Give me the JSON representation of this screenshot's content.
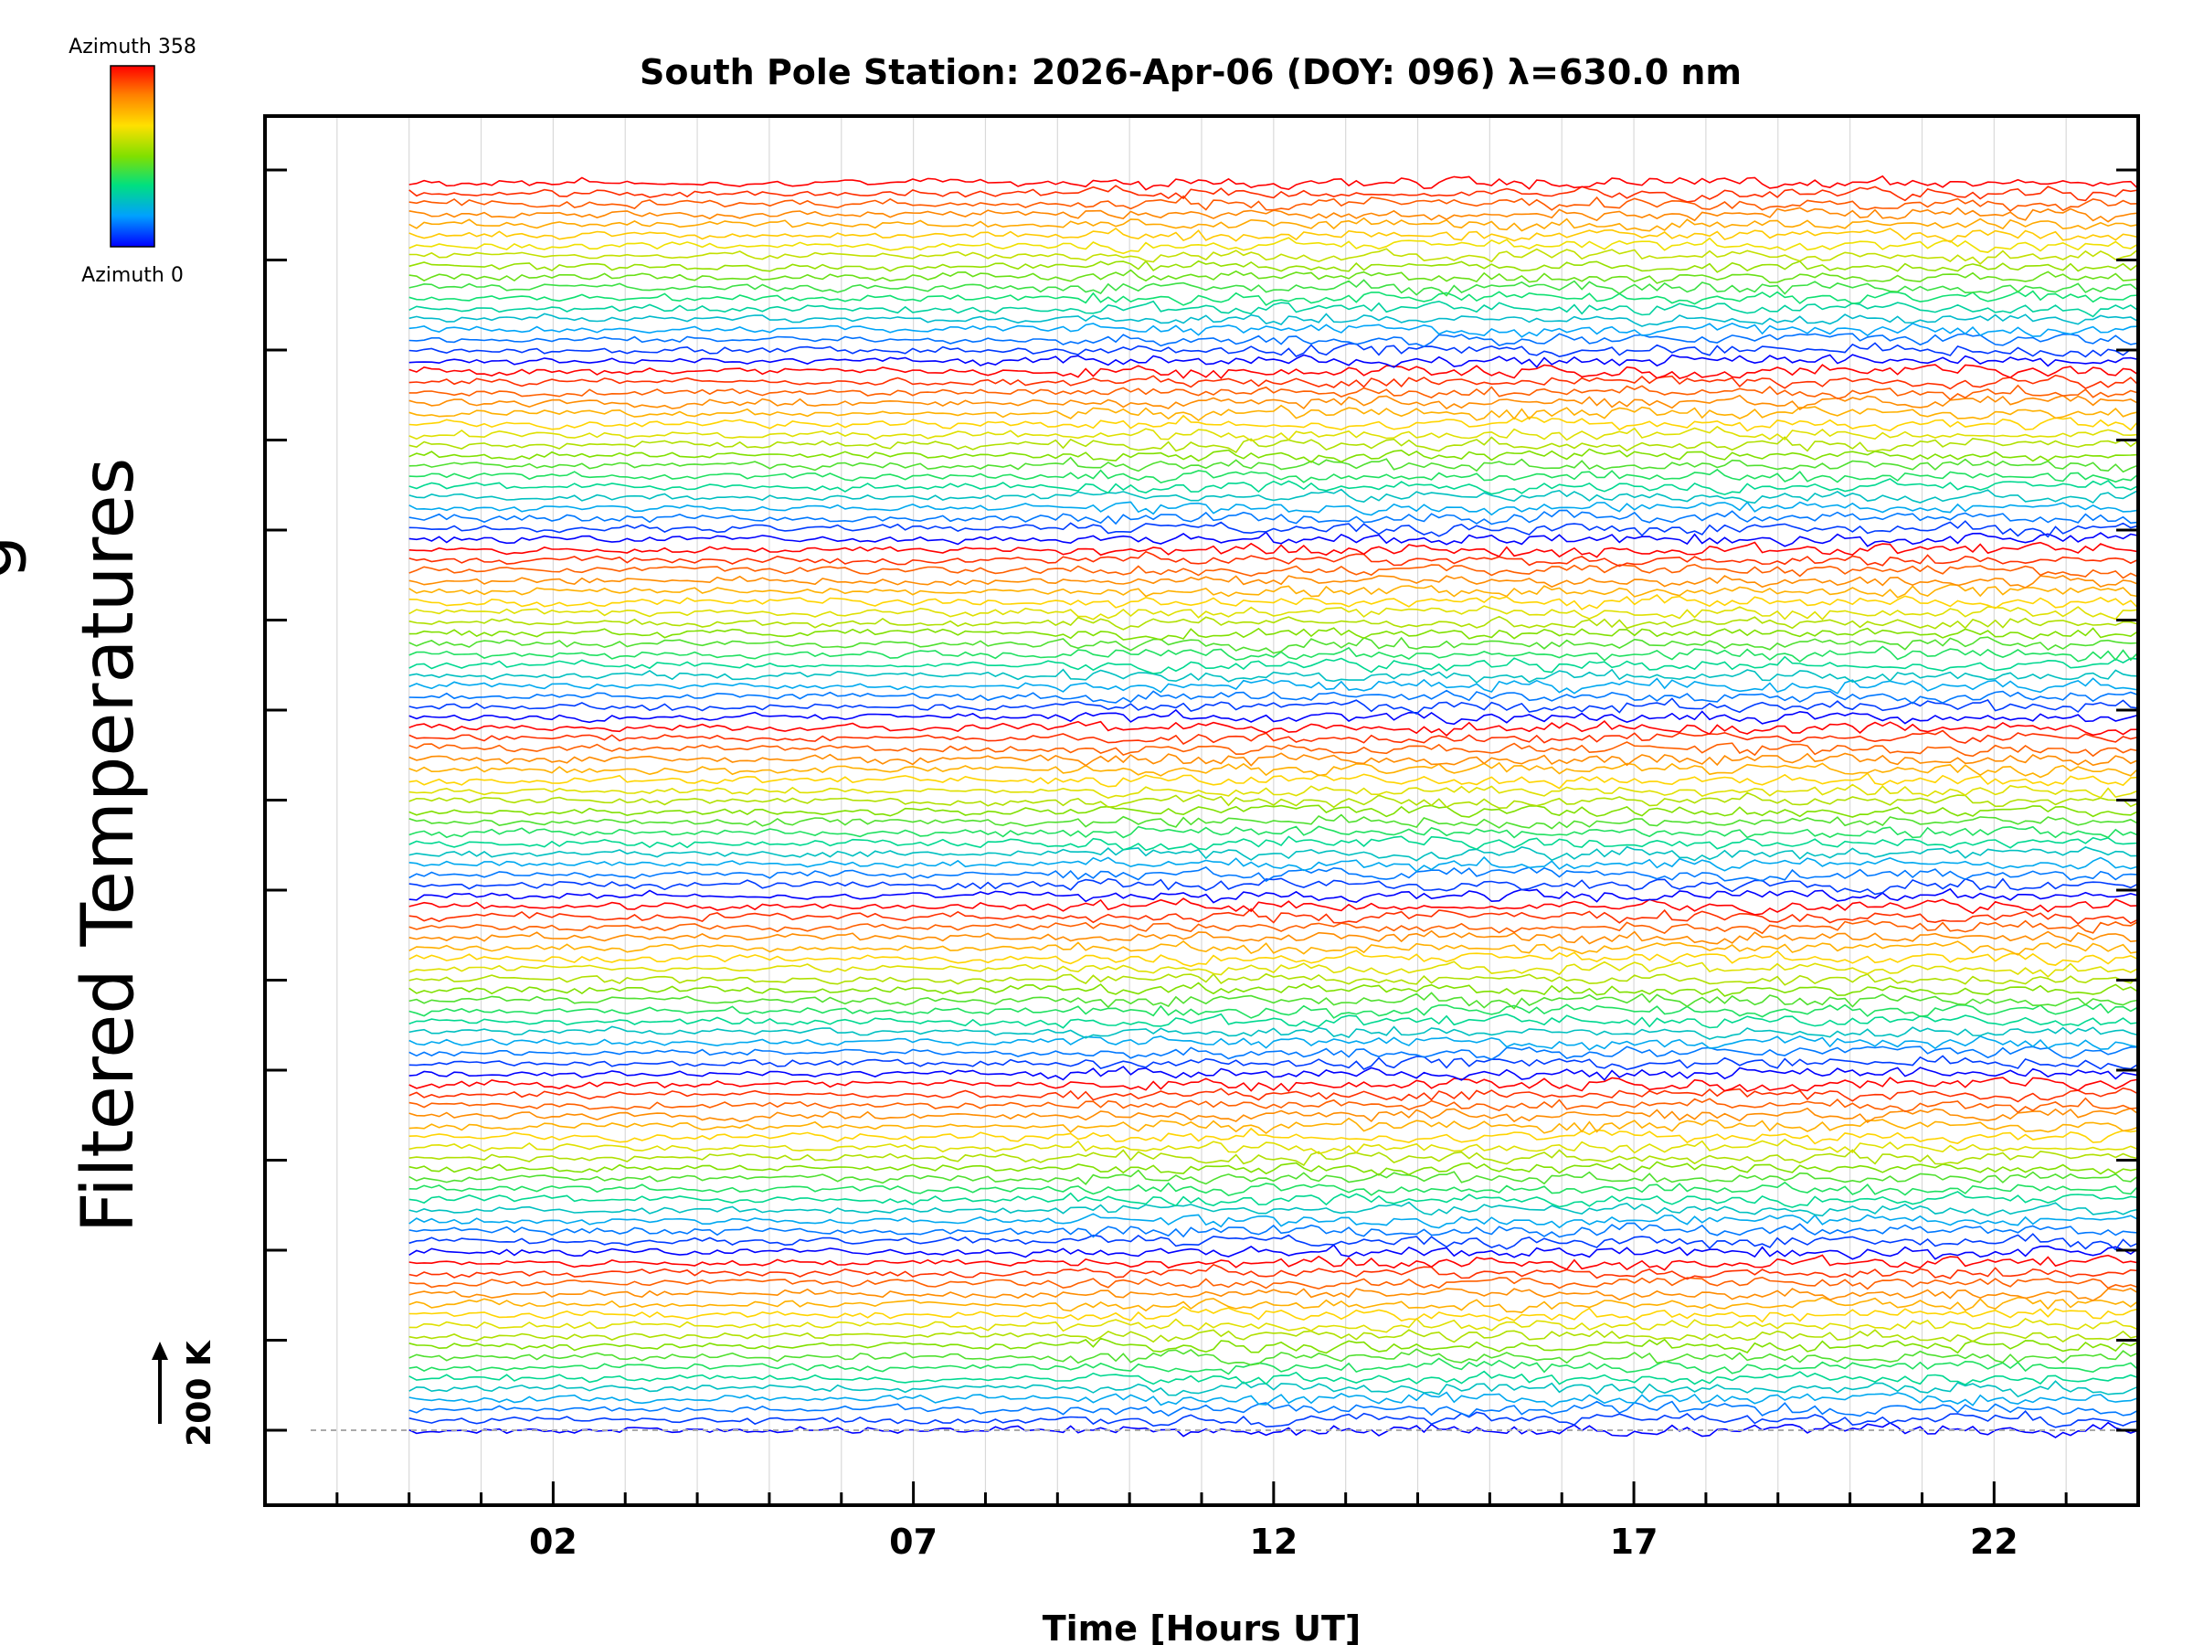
{
  "chart_data": {
    "type": "line",
    "title": "South Pole Station: 2026-Apr-06 (DOY: 096) λ=630.0 nm",
    "xlabel": "Time [Hours UT]",
    "ylabel": "Filtered Temperatures",
    "ylabel_partial": "g",
    "xlim": [
      -2,
      24
    ],
    "x_ticks": [
      2,
      7,
      12,
      17,
      22
    ],
    "x_tick_labels": [
      "02",
      "07",
      "12",
      "17",
      "22"
    ],
    "data_x_range": [
      0,
      24
    ],
    "scale_bar": {
      "label": "200 K"
    },
    "colorbar": {
      "top_label": "Azimuth 358",
      "bottom_label": "Azimuth 0",
      "min": 0,
      "max": 358,
      "colors": [
        "#0000ff",
        "#00a0ff",
        "#00e080",
        "#80e000",
        "#ffe000",
        "#ff8000",
        "#ff0000"
      ]
    },
    "traces": {
      "count": 120,
      "groups": 7,
      "group_sizes": [
        17,
        17,
        17,
        17,
        17,
        17,
        18
      ],
      "azimuth_order": "red at top of each group, blue at bottom",
      "baseline_offset_K": 200
    },
    "grid": "vertical"
  }
}
